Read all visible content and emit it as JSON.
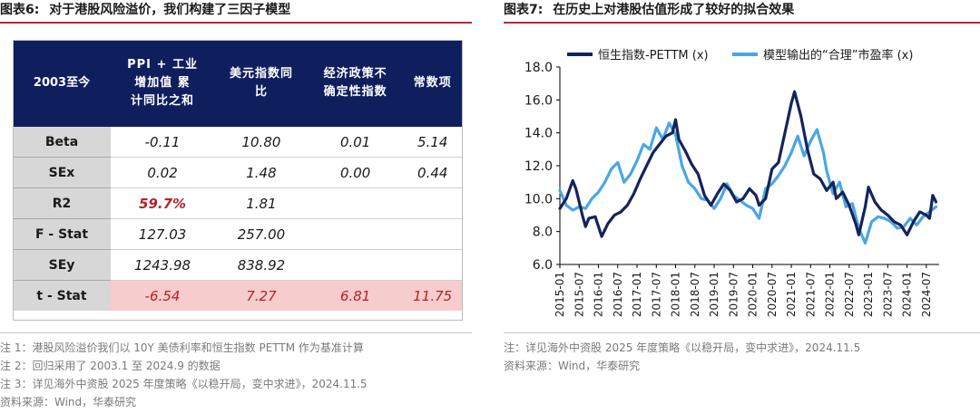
{
  "left": {
    "fig_num": "图表6:",
    "fig_title": "对于港股风险溢价，我们构建了三因子模型",
    "table": {
      "headers": [
        "2003至今",
        "PPI + 工业增加值 累计同比之和",
        "美元指数同比",
        "经济政策不确定性指数",
        "常数项"
      ],
      "header_lines": [
        [
          "2003至今"
        ],
        [
          "PPI + 工业",
          "增加值 累",
          "计同比之和"
        ],
        [
          "美元指数同",
          "比"
        ],
        [
          "经济政策不",
          "确定性指数"
        ],
        [
          "常数项"
        ]
      ],
      "rows": [
        {
          "label": "Beta",
          "cells": [
            "-0.11",
            "10.80",
            "0.01",
            "5.14"
          ]
        },
        {
          "label": "SEx",
          "cells": [
            "0.02",
            "1.48",
            "0.00",
            "0.44"
          ]
        },
        {
          "label": "R2",
          "cells": [
            "59.7%",
            "1.81",
            "",
            ""
          ]
        },
        {
          "label": "F - Stat",
          "cells": [
            "127.03",
            "257.00",
            "",
            ""
          ]
        },
        {
          "label": "SEy",
          "cells": [
            "1243.98",
            "838.92",
            "",
            ""
          ]
        },
        {
          "label": "t - Stat",
          "cells": [
            "-6.54",
            "7.27",
            "6.81",
            "11.75"
          ]
        }
      ]
    },
    "notes": [
      "注 1：港股风险溢价我们以 10Y 美债利率和恒生指数 PETTM 作为基准计算",
      "注 2：回归采用了 2003.1 至 2024.9 的数据",
      "注 3：详见海外中资股 2025 年度策略《以稳开局，变中求进》，2024.11.5",
      "资料来源：Wind，华泰研究"
    ]
  },
  "right": {
    "fig_num": "图表7:",
    "fig_title": "在历史上对港股估值形成了较好的拟合效果",
    "notes": [
      "注：详见海外中资股 2025 年度策略《以稳开局，变中求进》，2024.11.5",
      "资料来源：Wind，华泰研究"
    ]
  },
  "chart_data": {
    "type": "line",
    "ylim": [
      6.0,
      18.0
    ],
    "yticks": [
      "6.0",
      "8.0",
      "10.0",
      "12.0",
      "14.0",
      "16.0",
      "18.0"
    ],
    "xticks": [
      "2015-01",
      "2015-07",
      "2016-01",
      "2016-07",
      "2017-01",
      "2017-07",
      "2018-01",
      "2018-07",
      "2019-01",
      "2019-07",
      "2020-01",
      "2020-07",
      "2021-01",
      "2021-07",
      "2022-01",
      "2022-07",
      "2023-01",
      "2023-07",
      "2024-01",
      "2024-07"
    ],
    "legend_placement": "top",
    "series": [
      {
        "name": "恒生指数-PETTM (x)",
        "color": "#14235c",
        "points": [
          [
            "2015-01",
            9.4
          ],
          [
            "2015-03",
            10.0
          ],
          [
            "2015-05",
            11.1
          ],
          [
            "2015-06",
            10.6
          ],
          [
            "2015-08",
            9.0
          ],
          [
            "2015-09",
            8.3
          ],
          [
            "2015-10",
            8.8
          ],
          [
            "2015-12",
            8.9
          ],
          [
            "2016-02",
            7.7
          ],
          [
            "2016-04",
            8.5
          ],
          [
            "2016-06",
            9.0
          ],
          [
            "2016-08",
            9.2
          ],
          [
            "2016-10",
            9.6
          ],
          [
            "2016-12",
            10.3
          ],
          [
            "2017-02",
            11.2
          ],
          [
            "2017-04",
            12.0
          ],
          [
            "2017-06",
            12.8
          ],
          [
            "2017-08",
            13.3
          ],
          [
            "2017-10",
            13.8
          ],
          [
            "2017-12",
            14.0
          ],
          [
            "2018-01",
            14.8
          ],
          [
            "2018-02",
            13.6
          ],
          [
            "2018-04",
            12.9
          ],
          [
            "2018-06",
            12.1
          ],
          [
            "2018-08",
            11.5
          ],
          [
            "2018-10",
            10.2
          ],
          [
            "2018-12",
            9.6
          ],
          [
            "2019-02",
            10.3
          ],
          [
            "2019-04",
            10.9
          ],
          [
            "2019-06",
            10.5
          ],
          [
            "2019-08",
            9.8
          ],
          [
            "2019-10",
            10.0
          ],
          [
            "2019-12",
            10.6
          ],
          [
            "2020-02",
            10.2
          ],
          [
            "2020-03",
            9.6
          ],
          [
            "2020-05",
            10.0
          ],
          [
            "2020-07",
            11.8
          ],
          [
            "2020-09",
            12.2
          ],
          [
            "2020-11",
            14.0
          ],
          [
            "2021-01",
            15.8
          ],
          [
            "2021-02",
            16.5
          ],
          [
            "2021-04",
            15.0
          ],
          [
            "2021-06",
            13.0
          ],
          [
            "2021-08",
            11.5
          ],
          [
            "2021-10",
            11.2
          ],
          [
            "2021-12",
            10.5
          ],
          [
            "2022-02",
            11.0
          ],
          [
            "2022-03",
            10.0
          ],
          [
            "2022-05",
            10.4
          ],
          [
            "2022-07",
            9.6
          ],
          [
            "2022-09",
            8.5
          ],
          [
            "2022-10",
            7.8
          ],
          [
            "2022-12",
            9.5
          ],
          [
            "2023-01",
            10.7
          ],
          [
            "2023-03",
            9.8
          ],
          [
            "2023-05",
            9.3
          ],
          [
            "2023-07",
            9.0
          ],
          [
            "2023-09",
            8.6
          ],
          [
            "2023-11",
            8.4
          ],
          [
            "2024-01",
            7.8
          ],
          [
            "2024-03",
            8.6
          ],
          [
            "2024-05",
            9.2
          ],
          [
            "2024-07",
            9.0
          ],
          [
            "2024-08",
            8.8
          ],
          [
            "2024-09",
            10.2
          ],
          [
            "2024-10",
            9.8
          ]
        ]
      },
      {
        "name": "模型输出的“合理”市盈率 (x)",
        "color": "#4aa6e4",
        "points": [
          [
            "2015-01",
            10.5
          ],
          [
            "2015-03",
            9.6
          ],
          [
            "2015-05",
            9.3
          ],
          [
            "2015-07",
            9.5
          ],
          [
            "2015-09",
            9.4
          ],
          [
            "2015-11",
            10.0
          ],
          [
            "2016-01",
            10.4
          ],
          [
            "2016-03",
            11.0
          ],
          [
            "2016-05",
            11.8
          ],
          [
            "2016-07",
            12.2
          ],
          [
            "2016-09",
            11.0
          ],
          [
            "2016-11",
            11.5
          ],
          [
            "2017-01",
            12.3
          ],
          [
            "2017-03",
            13.3
          ],
          [
            "2017-05",
            13.0
          ],
          [
            "2017-07",
            14.3
          ],
          [
            "2017-09",
            13.6
          ],
          [
            "2017-11",
            14.6
          ],
          [
            "2018-01",
            13.9
          ],
          [
            "2018-03",
            12.0
          ],
          [
            "2018-05",
            11.0
          ],
          [
            "2018-07",
            10.6
          ],
          [
            "2018-09",
            10.0
          ],
          [
            "2018-11",
            9.9
          ],
          [
            "2019-01",
            9.4
          ],
          [
            "2019-03",
            10.0
          ],
          [
            "2019-05",
            10.9
          ],
          [
            "2019-07",
            10.2
          ],
          [
            "2019-09",
            9.9
          ],
          [
            "2019-11",
            9.6
          ],
          [
            "2020-01",
            9.4
          ],
          [
            "2020-03",
            8.8
          ],
          [
            "2020-05",
            10.6
          ],
          [
            "2020-07",
            10.9
          ],
          [
            "2020-09",
            11.4
          ],
          [
            "2020-11",
            12.0
          ],
          [
            "2021-01",
            12.8
          ],
          [
            "2021-03",
            13.8
          ],
          [
            "2021-05",
            12.6
          ],
          [
            "2021-07",
            13.5
          ],
          [
            "2021-09",
            14.2
          ],
          [
            "2021-11",
            12.8
          ],
          [
            "2021-12",
            11.7
          ],
          [
            "2022-02",
            10.3
          ],
          [
            "2022-04",
            11.0
          ],
          [
            "2022-06",
            9.5
          ],
          [
            "2022-08",
            9.7
          ],
          [
            "2022-10",
            8.2
          ],
          [
            "2022-12",
            7.3
          ],
          [
            "2023-02",
            8.6
          ],
          [
            "2023-04",
            8.9
          ],
          [
            "2023-06",
            8.8
          ],
          [
            "2023-08",
            8.6
          ],
          [
            "2023-10",
            8.2
          ],
          [
            "2023-12",
            8.3
          ],
          [
            "2024-02",
            8.8
          ],
          [
            "2024-04",
            8.4
          ],
          [
            "2024-06",
            8.9
          ],
          [
            "2024-08",
            9.2
          ],
          [
            "2024-10",
            9.5
          ]
        ]
      }
    ]
  }
}
